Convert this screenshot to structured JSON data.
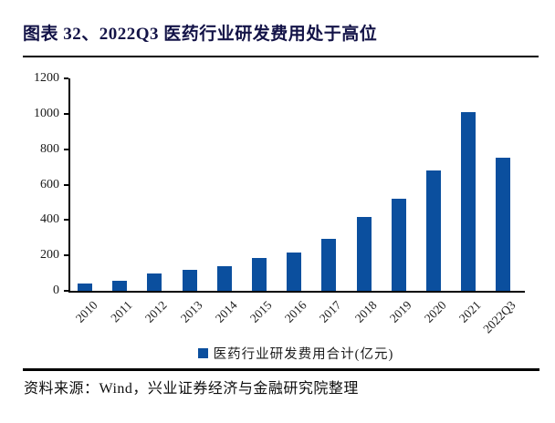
{
  "header": {
    "title": "图表 32、2022Q3 医药行业研发费用处于高位"
  },
  "colors": {
    "bar": "#0b4f9e",
    "title": "#131347",
    "axis": "#000000"
  },
  "chart_data": {
    "type": "bar",
    "categories": [
      "2010",
      "2011",
      "2012",
      "2013",
      "2014",
      "2015",
      "2016",
      "2017",
      "2018",
      "2019",
      "2020",
      "2021",
      "2022Q3"
    ],
    "values": [
      40,
      57,
      97,
      120,
      138,
      183,
      216,
      295,
      416,
      518,
      678,
      1012,
      754
    ],
    "title": "2022Q3 医药行业研发费用处于高位",
    "xlabel": "",
    "ylabel": "",
    "ylim": [
      0,
      1200
    ],
    "yticks": [
      0,
      200,
      400,
      600,
      800,
      1000,
      1200
    ],
    "grid": false,
    "legend_position": "bottom",
    "legend": [
      "医药行业研发费用合计(亿元)"
    ]
  },
  "legend": {
    "series_label": "医药行业研发费用合计(亿元)"
  },
  "footer": {
    "source": "资料来源：Wind，兴业证券经济与金融研究院整理"
  }
}
